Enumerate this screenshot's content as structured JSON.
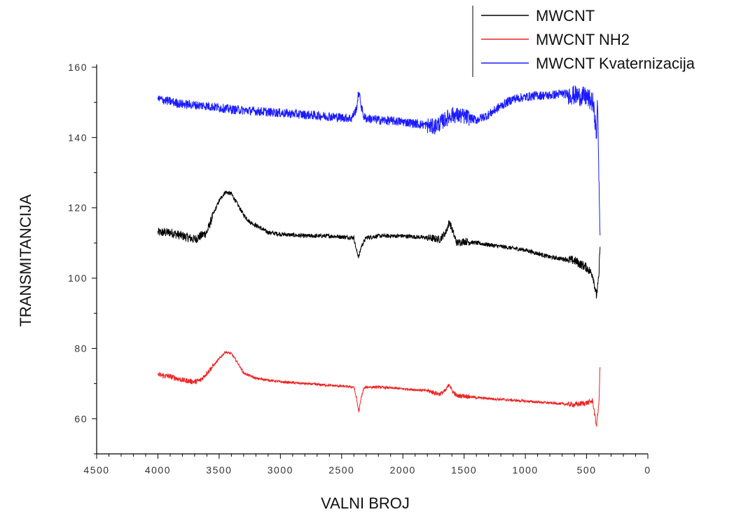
{
  "chart_data": {
    "type": "line",
    "xlabel": "VALNI BROJ",
    "ylabel": "TRANSMITANCIJA",
    "xlim": [
      4500,
      0
    ],
    "ylim": [
      50,
      160
    ],
    "x_reversed": true,
    "x_ticks": [
      4500,
      4000,
      3500,
      3000,
      2500,
      2000,
      1500,
      1000,
      500,
      0
    ],
    "y_ticks": [
      60,
      80,
      100,
      120,
      140,
      160
    ],
    "grid": false,
    "legend_position": "top-right",
    "series": [
      {
        "name": "MWCNT",
        "color": "#000000",
        "noise": 0.6,
        "x": [
          4000,
          3900,
          3800,
          3700,
          3600,
          3550,
          3500,
          3450,
          3400,
          3350,
          3300,
          3250,
          3200,
          3100,
          3000,
          2800,
          2600,
          2400,
          2380,
          2360,
          2340,
          2300,
          2200,
          2000,
          1800,
          1700,
          1650,
          1620,
          1600,
          1560,
          1500,
          1400,
          1200,
          1000,
          800,
          600,
          500,
          450,
          420,
          400,
          390
        ],
        "y": [
          113,
          113,
          112,
          111,
          113,
          118,
          122,
          124.5,
          124,
          121,
          118,
          116,
          115,
          113,
          112.5,
          112,
          112,
          111.5,
          108,
          106,
          109,
          111.5,
          112,
          112,
          111.5,
          111,
          113,
          116,
          114,
          110,
          110.5,
          110,
          109,
          108,
          106,
          105,
          103,
          101,
          95,
          100,
          110
        ]
      },
      {
        "name": "MWCNT NH2",
        "color": "#ee2222",
        "noise": 0.35,
        "x": [
          4000,
          3900,
          3800,
          3700,
          3650,
          3600,
          3500,
          3450,
          3400,
          3350,
          3300,
          3200,
          3000,
          2800,
          2600,
          2400,
          2380,
          2360,
          2340,
          2320,
          2300,
          2200,
          2000,
          1800,
          1700,
          1650,
          1620,
          1600,
          1560,
          1500,
          1400,
          1200,
          1000,
          800,
          600,
          500,
          450,
          420,
          400,
          390
        ],
        "y": [
          72.5,
          72,
          71,
          70.5,
          71,
          73,
          77,
          79,
          78.5,
          76,
          73,
          71.5,
          70.5,
          70,
          69.5,
          69,
          66,
          62,
          66,
          68.5,
          69,
          69,
          68.5,
          68,
          67,
          68,
          70,
          68,
          66.5,
          66.5,
          66,
          65.5,
          65,
          64.5,
          64,
          64.5,
          65,
          58,
          64,
          75
        ]
      },
      {
        "name": "MWCNT Kvaternizacija",
        "color": "#1a1aff",
        "noise": 1.3,
        "x": [
          4000,
          3800,
          3600,
          3400,
          3200,
          3000,
          2800,
          2600,
          2420,
          2380,
          2360,
          2340,
          2320,
          2300,
          2200,
          2000,
          1900,
          1800,
          1750,
          1700,
          1600,
          1500,
          1450,
          1400,
          1300,
          1200,
          1100,
          1000,
          900,
          800,
          700,
          600,
          500,
          450,
          430,
          420,
          410,
          400,
          390
        ],
        "y": [
          151,
          149.5,
          149,
          148,
          147.5,
          147,
          146.5,
          146,
          145.5,
          148,
          153,
          149,
          146,
          145.5,
          145,
          144.5,
          144,
          143.5,
          143,
          144,
          146.5,
          146,
          145.5,
          145,
          146.5,
          149,
          151,
          151.5,
          152,
          152,
          152.5,
          152,
          151.5,
          150,
          145,
          140,
          150,
          130,
          113
        ]
      }
    ]
  }
}
